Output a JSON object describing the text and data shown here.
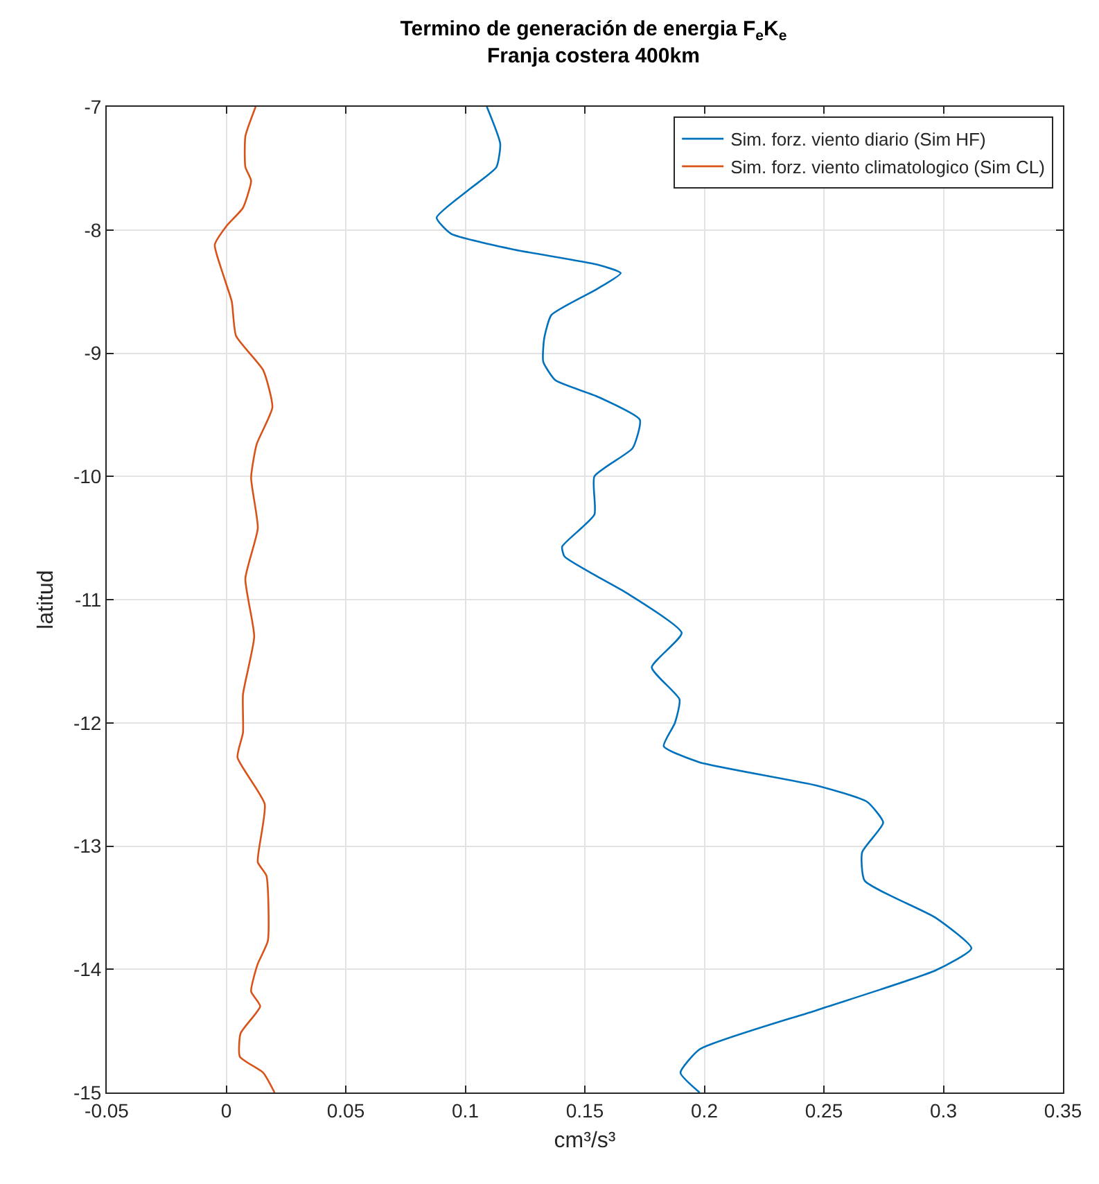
{
  "chart_data": {
    "type": "line",
    "title": "Termino de generación de energia F$_{e}$K$_{e}$",
    "subtitle": "Franja costera 400km",
    "xlabel": "cm³/s³",
    "ylabel": "latitud",
    "series": [
      {
        "name": "Sim. forz. viento diario (Sim HF)",
        "color": "#0072bd",
        "x": [
          0.109,
          0.1146,
          0.113,
          0.1017,
          0.088,
          0.094,
          0.1206,
          0.155,
          0.165,
          0.155,
          0.136,
          0.133,
          0.1326,
          0.1377,
          0.155,
          0.173,
          0.17,
          0.154,
          0.154,
          0.1405,
          0.1415,
          0.155,
          0.1678,
          0.1905,
          0.178,
          0.1896,
          0.1877,
          0.183,
          0.198,
          0.2473,
          0.268,
          0.2748,
          0.266,
          0.267,
          0.2966,
          0.3117,
          0.2966,
          0.2473,
          0.198,
          0.19,
          0.198
        ],
        "values": [
          -7.0,
          -7.3,
          -7.49,
          -7.67,
          -7.9,
          -8.03,
          -8.16,
          -8.28,
          -8.35,
          -8.48,
          -8.69,
          -8.88,
          -9.07,
          -9.22,
          -9.35,
          -9.54,
          -9.77,
          -10.0,
          -10.31,
          -10.57,
          -10.65,
          -10.81,
          -10.95,
          -11.27,
          -11.55,
          -11.81,
          -12.0,
          -12.19,
          -12.32,
          -12.51,
          -12.64,
          -12.81,
          -13.05,
          -13.28,
          -13.58,
          -13.83,
          -14.01,
          -14.33,
          -14.65,
          -14.84,
          -15.0
        ]
      },
      {
        "name": "Sim. forz. viento climatologico (Sim CL)",
        "color": "#d95319",
        "x": [
          0.0123,
          0.008,
          0.008,
          0.0104,
          0.007,
          0.0,
          -0.0048,
          -0.0015,
          0.0023,
          0.0041,
          0.0155,
          0.0193,
          0.0127,
          0.0104,
          0.0132,
          0.008,
          0.0117,
          0.007,
          0.007,
          0.0047,
          0.0161,
          0.0132,
          0.0168,
          0.0174,
          0.0131,
          0.0104,
          0.0142,
          0.006,
          0.0057,
          0.0155,
          0.0202
        ],
        "values": [
          -7.0,
          -7.24,
          -7.49,
          -7.6,
          -7.82,
          -7.97,
          -8.12,
          -8.35,
          -8.58,
          -8.86,
          -9.14,
          -9.44,
          -9.74,
          -10.01,
          -10.42,
          -10.83,
          -11.3,
          -11.77,
          -12.08,
          -12.28,
          -12.66,
          -13.13,
          -13.24,
          -13.77,
          -13.96,
          -14.18,
          -14.3,
          -14.52,
          -14.71,
          -14.84,
          -15.0
        ]
      }
    ],
    "xlim": [
      -0.05,
      0.35
    ],
    "xticks": [
      -0.05,
      0,
      0.05,
      0.1,
      0.15,
      0.2,
      0.25,
      0.3,
      0.35
    ],
    "ylim": [
      -15,
      -7
    ],
    "yticks": [
      -15,
      -14,
      -13,
      -12,
      -11,
      -10,
      -9,
      -8,
      -7
    ],
    "grid": true,
    "legend": "top right",
    "marker": "none",
    "line_style": "solid"
  }
}
